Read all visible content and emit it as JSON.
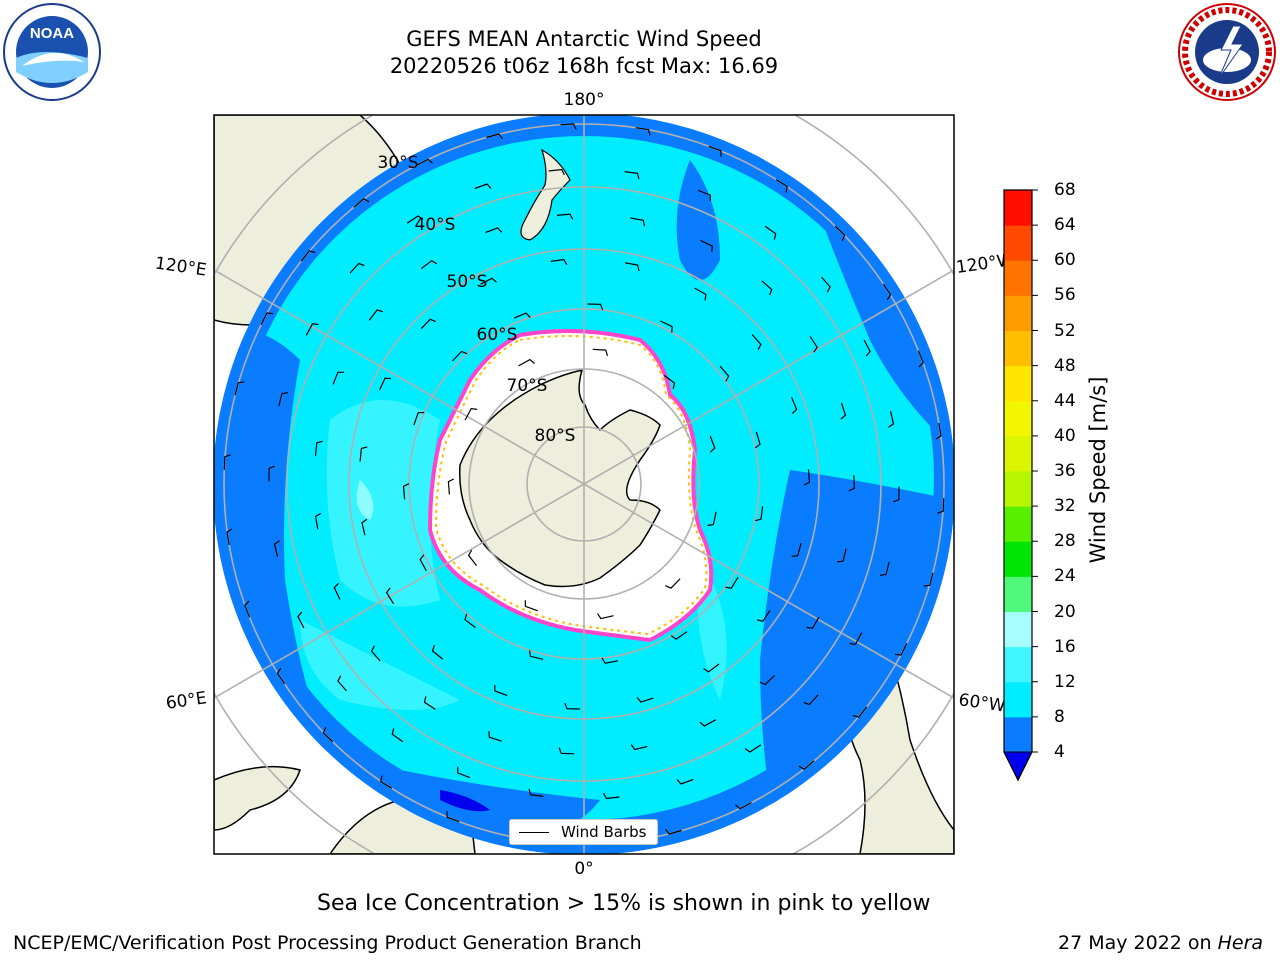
{
  "title": {
    "line1": "GEFS MEAN Antarctic Wind Speed",
    "line2": "20220526 t06z 168h fcst   Max: 16.69"
  },
  "logos": {
    "left": "noaa-logo",
    "right": "nws-logo",
    "left_text": "NOAA"
  },
  "map": {
    "projection": "south-polar-stereographic",
    "lon_labels": {
      "top": "180°",
      "bottom": "0°",
      "left_upper": "120°E",
      "left_lower": "60°E",
      "right_upper": "120°W",
      "right_lower": "60°W"
    },
    "lat_labels": [
      "30°S",
      "40°S",
      "50°S",
      "60°S",
      "70°S",
      "80°S"
    ],
    "legend_label": "Wind Barbs"
  },
  "colorbar": {
    "title": "Wind Speed [m/s]",
    "ticks": [
      "4",
      "8",
      "12",
      "16",
      "20",
      "24",
      "28",
      "32",
      "36",
      "40",
      "44",
      "48",
      "52",
      "56",
      "60",
      "64",
      "68"
    ],
    "colors": [
      "#0a7cff",
      "#00ecff",
      "#3ff6ff",
      "#a5fdff",
      "#4ef97b",
      "#00e600",
      "#59f000",
      "#b8f500",
      "#dcf500",
      "#f2f700",
      "#ffe600",
      "#ffbe00",
      "#ff9c00",
      "#ff7400",
      "#ff4a00",
      "#ff0f00"
    ],
    "under_color": "#0000ee"
  },
  "footer": {
    "note": "Sea Ice Concentration > 15% is shown in pink to yellow",
    "branch": "NCEP/EMC/Verification Post Processing Product Generation Branch",
    "date_prefix": "27 May 2022 on ",
    "date_machine": "Hera"
  }
}
